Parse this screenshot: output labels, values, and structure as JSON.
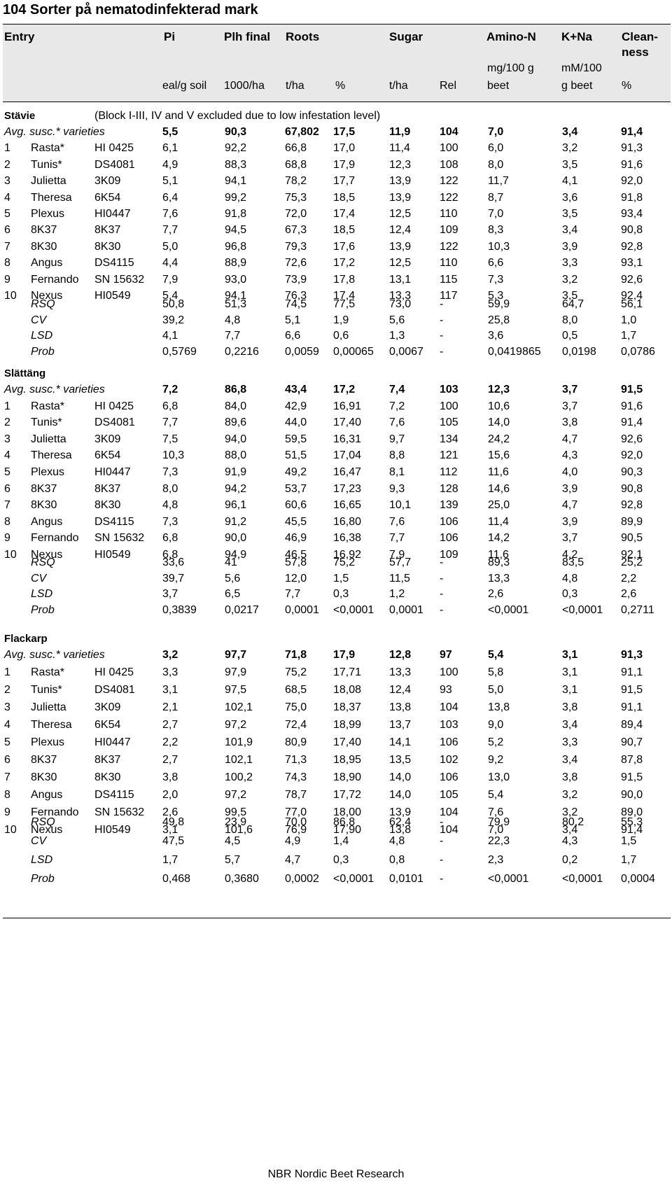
{
  "title": "104 Sorter på nematodinfekterad mark",
  "header": {
    "entry": "Entry",
    "pi": "Pi",
    "plh": "Plh final",
    "roots": "Roots",
    "sugar": "Sugar",
    "amino": "Amino-N",
    "kna": "K+Na",
    "clean1": "Clean-",
    "clean2": "ness",
    "u_pi": "eal/g soil",
    "u_plh": "1000/ha",
    "u_roots_t": "t/ha",
    "u_roots_p": "%",
    "u_sugar_t": "t/ha",
    "u_sugar_rel": "Rel",
    "u_amino1": "mg/100 g",
    "u_amino2": "beet",
    "u_kna1": "mM/100",
    "u_kna2": "g beet",
    "u_clean": "%"
  },
  "sections": [
    {
      "name": "Stävie",
      "note": "(Block I-III, IV and V excluded due to low infestation level)",
      "avg": [
        "Avg. susc.* varieties",
        "5,5",
        "90,3",
        "67,802",
        "17,5",
        "11,9",
        "104",
        "7,0",
        "3,4",
        "91,4"
      ],
      "rows": [
        [
          "1",
          "Rasta*",
          "HI 0425",
          "6,1",
          "92,2",
          "66,8",
          "17,0",
          "11,4",
          "100",
          "6,0",
          "3,2",
          "91,3"
        ],
        [
          "2",
          "Tunis*",
          "DS4081",
          "4,9",
          "88,3",
          "68,8",
          "17,9",
          "12,3",
          "108",
          "8,0",
          "3,5",
          "91,6"
        ],
        [
          "3",
          "Julietta",
          "3K09",
          "5,1",
          "94,1",
          "78,2",
          "17,7",
          "13,9",
          "122",
          "11,7",
          "4,1",
          "92,0"
        ],
        [
          "4",
          "Theresa",
          "6K54",
          "6,4",
          "99,2",
          "75,3",
          "18,5",
          "13,9",
          "122",
          "8,7",
          "3,6",
          "91,8"
        ],
        [
          "5",
          "Plexus",
          "HI0447",
          "7,6",
          "91,8",
          "72,0",
          "17,4",
          "12,5",
          "110",
          "7,0",
          "3,5",
          "93,4"
        ],
        [
          "6",
          "8K37",
          "8K37",
          "7,7",
          "94,5",
          "67,3",
          "18,5",
          "12,4",
          "109",
          "8,3",
          "3,4",
          "90,8"
        ],
        [
          "7",
          "8K30",
          "8K30",
          "5,0",
          "96,8",
          "79,3",
          "17,6",
          "13,9",
          "122",
          "10,3",
          "3,9",
          "92,8"
        ],
        [
          "8",
          "Angus",
          "DS4115",
          "4,4",
          "88,9",
          "72,6",
          "17,2",
          "12,5",
          "110",
          "6,6",
          "3,3",
          "93,1"
        ],
        [
          "9",
          "Fernando",
          "SN 15632",
          "7,9",
          "93,0",
          "73,9",
          "17,8",
          "13,1",
          "115",
          "7,3",
          "3,2",
          "92,6"
        ],
        [
          "10",
          "Nexus",
          "HI0549",
          "5,4",
          "94,1",
          "76,3",
          "17,4",
          "13,3",
          "117",
          "5,3",
          "3,5",
          "92,4"
        ]
      ],
      "stats": [
        [
          "RSQ",
          "50,8",
          "51,3",
          "74,5",
          "77,5",
          "73,0",
          "-",
          "59,9",
          "64,7",
          "56,1"
        ],
        [
          "CV",
          "39,2",
          "4,8",
          "5,1",
          "1,9",
          "5,6",
          "-",
          "25,8",
          "8,0",
          "1,0"
        ],
        [
          "LSD",
          "4,1",
          "7,7",
          "6,6",
          "0,6",
          "1,3",
          "-",
          "3,6",
          "0,5",
          "1,7"
        ],
        [
          "Prob",
          "0,5769",
          "0,2216",
          "0,0059",
          "0,00065",
          "0,0067",
          "-",
          "0,0419865",
          "0,0198",
          "0,0786"
        ]
      ]
    },
    {
      "name": "Slättäng",
      "note": "",
      "avg": [
        "Avg. susc.* varieties",
        "7,2",
        "86,8",
        "43,4",
        "17,2",
        "7,4",
        "103",
        "12,3",
        "3,7",
        "91,5"
      ],
      "rows": [
        [
          "1",
          "Rasta*",
          "HI 0425",
          "6,8",
          "84,0",
          "42,9",
          "16,91",
          "7,2",
          "100",
          "10,6",
          "3,7",
          "91,6"
        ],
        [
          "2",
          "Tunis*",
          "DS4081",
          "7,7",
          "89,6",
          "44,0",
          "17,40",
          "7,6",
          "105",
          "14,0",
          "3,8",
          "91,4"
        ],
        [
          "3",
          "Julietta",
          "3K09",
          "7,5",
          "94,0",
          "59,5",
          "16,31",
          "9,7",
          "134",
          "24,2",
          "4,7",
          "92,6"
        ],
        [
          "4",
          "Theresa",
          "6K54",
          "10,3",
          "88,0",
          "51,5",
          "17,04",
          "8,8",
          "121",
          "15,6",
          "4,3",
          "92,0"
        ],
        [
          "5",
          "Plexus",
          "HI0447",
          "7,3",
          "91,9",
          "49,2",
          "16,47",
          "8,1",
          "112",
          "11,6",
          "4,0",
          "90,3"
        ],
        [
          "6",
          "8K37",
          "8K37",
          "8,0",
          "94,2",
          "53,7",
          "17,23",
          "9,3",
          "128",
          "14,6",
          "3,9",
          "90,8"
        ],
        [
          "7",
          "8K30",
          "8K30",
          "4,8",
          "96,1",
          "60,6",
          "16,65",
          "10,1",
          "139",
          "25,0",
          "4,7",
          "92,8"
        ],
        [
          "8",
          "Angus",
          "DS4115",
          "7,3",
          "91,2",
          "45,5",
          "16,80",
          "7,6",
          "106",
          "11,4",
          "3,9",
          "89,9"
        ],
        [
          "9",
          "Fernando",
          "SN 15632",
          "6,8",
          "90,0",
          "46,9",
          "16,38",
          "7,7",
          "106",
          "14,2",
          "3,7",
          "90,5"
        ],
        [
          "10",
          "Nexus",
          "HI0549",
          "6,8",
          "94,9",
          "46,5",
          "16,92",
          "7,9",
          "109",
          "11,6",
          "4,2",
          "92,1"
        ]
      ],
      "stats": [
        [
          "RSQ",
          "33,6",
          "41",
          "57,8",
          "75,2",
          "57,7",
          "-",
          "89,3",
          "83,5",
          "25,2"
        ],
        [
          "CV",
          "39,7",
          "5,6",
          "12,0",
          "1,5",
          "11,5",
          "-",
          "13,3",
          "4,8",
          "2,2"
        ],
        [
          "LSD",
          "3,7",
          "6,5",
          "7,7",
          "0,3",
          "1,2",
          "-",
          "2,6",
          "0,3",
          "2,6"
        ],
        [
          "Prob",
          "0,3839",
          "0,0217",
          "0,0001",
          "<0,0001",
          "0,0001",
          "-",
          "<0,0001",
          "<0,0001",
          "0,2711"
        ]
      ]
    },
    {
      "name": "Flackarp",
      "note": "",
      "avg": [
        "Avg. susc.* varieties",
        "3,2",
        "97,7",
        "71,8",
        "17,9",
        "12,8",
        "97",
        "5,4",
        "3,1",
        "91,3"
      ],
      "rows": [
        [
          "1",
          "Rasta*",
          "HI 0425",
          "3,3",
          "97,9",
          "75,2",
          "17,71",
          "13,3",
          "100",
          "5,8",
          "3,1",
          "91,1"
        ],
        [
          "2",
          "Tunis*",
          "DS4081",
          "3,1",
          "97,5",
          "68,5",
          "18,08",
          "12,4",
          "93",
          "5,0",
          "3,1",
          "91,5"
        ],
        [
          "3",
          "Julietta",
          "3K09",
          "2,1",
          "102,1",
          "75,0",
          "18,37",
          "13,8",
          "104",
          "13,8",
          "3,8",
          "91,1"
        ],
        [
          "4",
          "Theresa",
          "6K54",
          "2,7",
          "97,2",
          "72,4",
          "18,99",
          "13,7",
          "103",
          "9,0",
          "3,4",
          "89,4"
        ],
        [
          "5",
          "Plexus",
          "HI0447",
          "2,2",
          "101,9",
          "80,9",
          "17,40",
          "14,1",
          "106",
          "5,2",
          "3,3",
          "90,7"
        ],
        [
          "6",
          "8K37",
          "8K37",
          "2,7",
          "102,1",
          "71,3",
          "18,95",
          "13,5",
          "102",
          "9,2",
          "3,4",
          "87,8"
        ],
        [
          "7",
          "8K30",
          "8K30",
          "3,8",
          "100,2",
          "74,3",
          "18,90",
          "14,0",
          "106",
          "13,0",
          "3,8",
          "91,5"
        ],
        [
          "8",
          "Angus",
          "DS4115",
          "2,0",
          "97,2",
          "78,7",
          "17,72",
          "14,0",
          "105",
          "5,4",
          "3,2",
          "90,0"
        ],
        [
          "9",
          "Fernando",
          "SN 15632",
          "2,6",
          "99,5",
          "77,0",
          "18,00",
          "13,9",
          "104",
          "7,6",
          "3,2",
          "89,0"
        ],
        [
          "10",
          "Nexus",
          "HI0549",
          "3,1",
          "101,6",
          "76,9",
          "17,90",
          "13,8",
          "104",
          "7,0",
          "3,4",
          "91,4"
        ]
      ],
      "stats": [
        [
          "RSQ",
          "49,8",
          "23,9",
          "70,0",
          "86,8",
          "62,4",
          "-",
          "79,9",
          "80,2",
          "55,3"
        ],
        [
          "CV",
          "47,5",
          "4,5",
          "4,9",
          "1,4",
          "4,8",
          "-",
          "22,3",
          "4,3",
          "1,5"
        ],
        [
          "LSD",
          "1,7",
          "5,7",
          "4,7",
          "0,3",
          "0,8",
          "-",
          "2,3",
          "0,2",
          "1,7"
        ],
        [
          "Prob",
          "0,468",
          "0,3680",
          "0,0002",
          "<0,0001",
          "0,0101",
          "-",
          "<0,0001",
          "<0,0001",
          "0,0004"
        ]
      ]
    }
  ],
  "footer": "NBR Nordic Beet Research"
}
